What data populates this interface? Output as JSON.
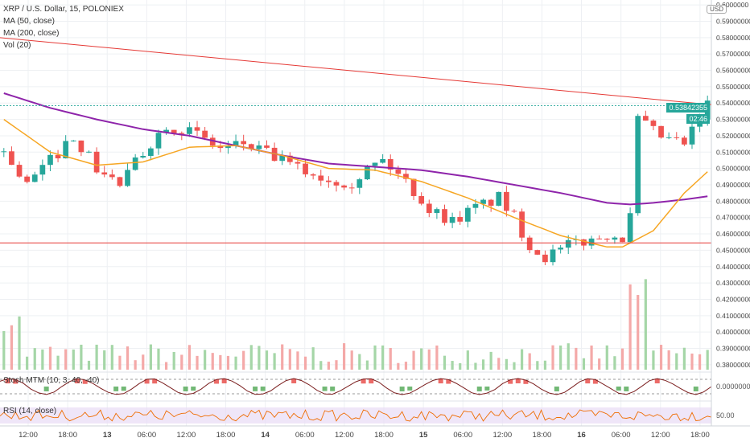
{
  "header": {
    "title": "XRP / U.S. Dollar, 15, POLONIEX",
    "indicators": [
      "MA (50, close)",
      "MA (200, close)",
      "Vol (20)"
    ],
    "currency": "USD"
  },
  "price_scale": {
    "ticks": [
      "0.6000000",
      "0.59000000",
      "0.58000000",
      "0.57000000",
      "0.56000000",
      "0.55000000",
      "0.54000000",
      "0.53000000",
      "0.52000000",
      "0.51000000",
      "0.50000000",
      "0.49000000",
      "0.48000000",
      "0.47000000",
      "0.46000000",
      "0.45000000",
      "0.44000000",
      "0.43000000",
      "0.42000000",
      "0.41000000",
      "0.40000000",
      "0.39000000",
      "0.38000000"
    ],
    "last_price": "0.53842355",
    "countdown": "02:46"
  },
  "time_axis": [
    "12:00",
    "18:00",
    "13",
    "06:00",
    "12:00",
    "18:00",
    "14",
    "06:00",
    "12:00",
    "18:00",
    "15",
    "06:00",
    "12:00",
    "18:00",
    "16",
    "06:00",
    "12:00",
    "18:00"
  ],
  "stoch": {
    "label": "Stoch MTM (10, 3, 40, -40)",
    "tick": "0.00000000"
  },
  "rsi": {
    "label": "RSI (14, close)",
    "tick": "50.00"
  },
  "colors": {
    "up": "#26a69a",
    "down": "#ef5350",
    "ma50": "#f6a623",
    "ma200": "#8e24aa",
    "trend": "#e53935"
  },
  "chart_data": {
    "type": "candlestick",
    "title": "XRP / U.S. Dollar, 15, POLONIEX",
    "ylim": [
      0.377,
      0.603
    ],
    "annotations": [
      {
        "name": "Descending trendline",
        "start": 0.58,
        "end": 0.539
      },
      {
        "name": "Horizontal support",
        "value": 0.4545
      }
    ],
    "path_keypoints": [
      [
        0,
        0.51
      ],
      [
        3,
        0.49
      ],
      [
        6,
        0.505
      ],
      [
        9,
        0.52
      ],
      [
        12,
        0.5
      ],
      [
        15,
        0.49
      ],
      [
        18,
        0.51
      ],
      [
        21,
        0.527
      ],
      [
        24,
        0.523
      ],
      [
        28,
        0.512
      ],
      [
        31,
        0.515
      ],
      [
        34,
        0.509
      ],
      [
        38,
        0.5
      ],
      [
        42,
        0.493
      ],
      [
        45,
        0.492
      ],
      [
        47,
        0.5
      ],
      [
        49,
        0.505
      ],
      [
        52,
        0.492
      ],
      [
        55,
        0.475
      ],
      [
        58,
        0.468
      ],
      [
        61,
        0.476
      ],
      [
        64,
        0.482
      ],
      [
        66,
        0.47
      ],
      [
        68,
        0.453
      ],
      [
        70,
        0.446
      ],
      [
        72,
        0.45
      ],
      [
        74,
        0.455
      ],
      [
        76,
        0.456
      ],
      [
        78,
        0.46
      ],
      [
        80,
        0.458
      ],
      [
        81,
        0.47
      ],
      [
        82,
        0.53
      ],
      [
        84,
        0.522
      ],
      [
        86,
        0.517
      ],
      [
        88,
        0.515
      ],
      [
        90,
        0.53
      ],
      [
        91,
        0.539
      ]
    ],
    "ma50_keypoints": [
      [
        0,
        0.53
      ],
      [
        6,
        0.51
      ],
      [
        12,
        0.502
      ],
      [
        18,
        0.504
      ],
      [
        24,
        0.513
      ],
      [
        30,
        0.514
      ],
      [
        36,
        0.508
      ],
      [
        42,
        0.5
      ],
      [
        48,
        0.499
      ],
      [
        54,
        0.492
      ],
      [
        60,
        0.482
      ],
      [
        66,
        0.47
      ],
      [
        72,
        0.459
      ],
      [
        78,
        0.452
      ],
      [
        80,
        0.452
      ],
      [
        84,
        0.462
      ],
      [
        88,
        0.485
      ],
      [
        91,
        0.498
      ]
    ],
    "ma200_keypoints": [
      [
        0,
        0.546
      ],
      [
        6,
        0.537
      ],
      [
        12,
        0.53
      ],
      [
        18,
        0.524
      ],
      [
        24,
        0.52
      ],
      [
        30,
        0.514
      ],
      [
        36,
        0.508
      ],
      [
        42,
        0.503
      ],
      [
        48,
        0.501
      ],
      [
        54,
        0.499
      ],
      [
        60,
        0.495
      ],
      [
        66,
        0.49
      ],
      [
        72,
        0.485
      ],
      [
        78,
        0.479
      ],
      [
        81,
        0.478
      ],
      [
        84,
        0.479
      ],
      [
        88,
        0.481
      ],
      [
        91,
        0.483
      ]
    ]
  }
}
